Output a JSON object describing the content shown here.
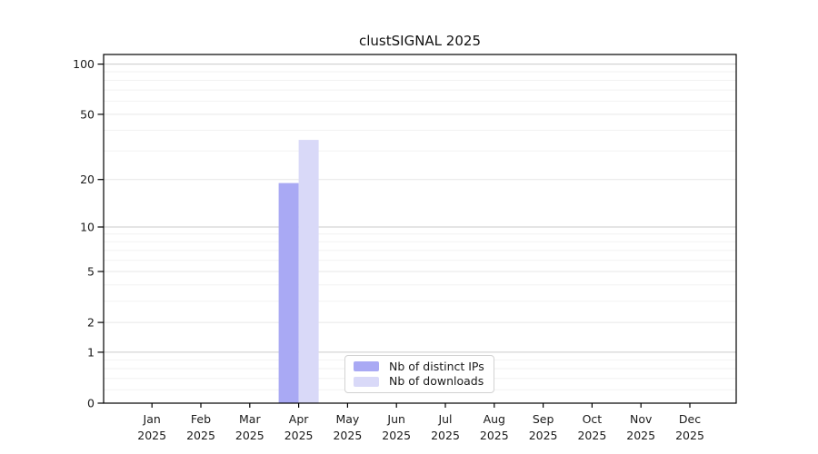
{
  "title": "clustSIGNAL 2025",
  "legend": {
    "items": [
      {
        "label": "Nb of distinct IPs",
        "color": "#a9a9f4"
      },
      {
        "label": "Nb of downloads",
        "color": "#d9d9f8"
      }
    ]
  },
  "chart_data": {
    "type": "bar",
    "title": "clustSIGNAL 2025",
    "categories": [
      "Jan",
      "Feb",
      "Mar",
      "Apr",
      "May",
      "Jun",
      "Jul",
      "Aug",
      "Sep",
      "Oct",
      "Nov",
      "Dec"
    ],
    "category_sublabel": "2025",
    "series": [
      {
        "name": "Nb of distinct IPs",
        "color": "#a9a9f4",
        "values": [
          0,
          0,
          0,
          19,
          0,
          0,
          0,
          0,
          0,
          0,
          0,
          0
        ]
      },
      {
        "name": "Nb of downloads",
        "color": "#d9d9f8",
        "values": [
          0,
          0,
          0,
          35,
          0,
          0,
          0,
          0,
          0,
          0,
          0,
          0
        ]
      }
    ],
    "yscale": "symlog",
    "ylim": [
      0,
      100
    ],
    "yticks_labeled": [
      0,
      1,
      2,
      5,
      10,
      20,
      50,
      100
    ],
    "yticks_major": [
      1,
      10,
      100
    ],
    "yticks_mid": [
      2,
      5,
      20,
      50
    ],
    "yticks_minor": [
      0.2,
      0.4,
      0.6,
      0.8,
      3,
      4,
      6,
      7,
      8,
      9,
      30,
      40,
      60,
      70,
      80,
      90
    ],
    "grid": true,
    "legend_position": "lower center, inside plot",
    "colors": {
      "grid_major": "#cbcbcb",
      "grid_mid": "#e7e7e7",
      "grid_minor": "#f2f2f2",
      "axis": "#000000",
      "text": "#1a1a1a"
    }
  }
}
